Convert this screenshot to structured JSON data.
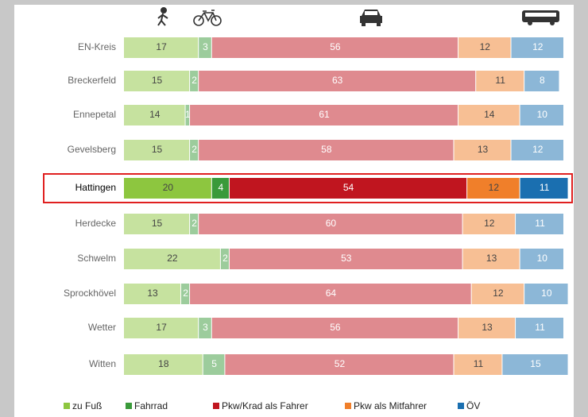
{
  "chart_data": {
    "type": "stacked_bar_horizontal",
    "categories": [
      "EN-Kreis",
      "Breckerfeld",
      "Ennepetal",
      "Gevelsberg",
      "Hattingen",
      "Herdecke",
      "Schwelm",
      "Sprockhövel",
      "Wetter",
      "Witten"
    ],
    "series": [
      {
        "name": "zu Fuß",
        "color": "#8dc63f",
        "values": [
          17,
          15,
          14,
          15,
          20,
          15,
          22,
          13,
          17,
          18
        ]
      },
      {
        "name": "Fahrrad",
        "color": "#3a9a3a",
        "values": [
          3,
          2,
          1,
          2,
          4,
          2,
          2,
          2,
          3,
          5
        ]
      },
      {
        "name": "Pkw/Krad als Fahrer",
        "color": "#c0151f",
        "values": [
          56,
          63,
          61,
          58,
          54,
          60,
          53,
          64,
          56,
          52
        ]
      },
      {
        "name": "Pkw als Mitfahrer",
        "color": "#f07f2a",
        "values": [
          12,
          11,
          14,
          13,
          12,
          12,
          13,
          12,
          13,
          11
        ]
      },
      {
        "name": "ÖV",
        "color": "#1a6fb0",
        "values": [
          12,
          8,
          10,
          12,
          11,
          11,
          10,
          10,
          11,
          15
        ]
      }
    ],
    "xlim": [
      0,
      100
    ],
    "highlight_category_index": 4,
    "legend": "bottom"
  }
}
